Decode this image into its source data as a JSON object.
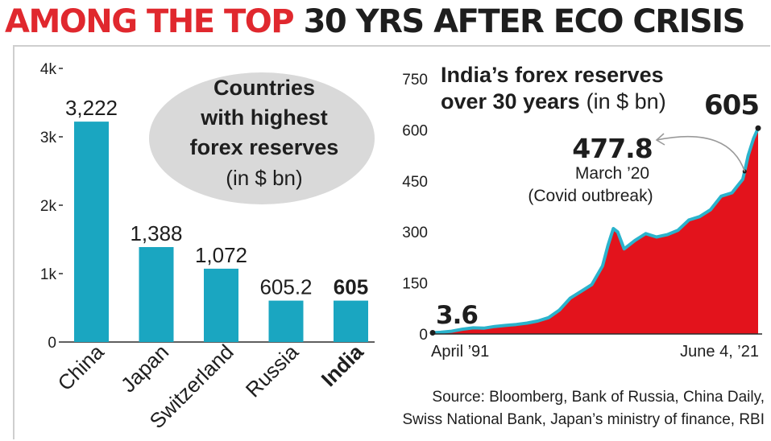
{
  "headline": {
    "part1": "AMONG THE TOP",
    "part2": "30 YRS AFTER ECO CRISIS"
  },
  "colors": {
    "headline_red": "#e0282e",
    "bar": "#1aa6c1",
    "area_fill": "#e3131c",
    "area_line": "#2ab3cc",
    "bubble": "#d9d9d9"
  },
  "source": {
    "line1": "Source: Bloomberg, Bank of Russia, China Daily,",
    "line2": "Swiss National Bank, Japan’s ministry of finance, RBI"
  },
  "chart_data": [
    {
      "type": "bar",
      "title_lines": [
        "Countries",
        "with highest",
        "forex reserves"
      ],
      "unit": "(in $ bn)",
      "categories": [
        "China",
        "Japan",
        "Switzerland",
        "Russia",
        "India"
      ],
      "values": [
        3222,
        1388,
        1072,
        605.2,
        605
      ],
      "value_labels": [
        "3,222",
        "1,388",
        "1,072",
        "605.2",
        "605"
      ],
      "highlight": "India",
      "yticks": [
        0,
        1000,
        2000,
        3000,
        4000
      ],
      "ytick_labels": [
        "0",
        "1k",
        "2k",
        "3k",
        "4k"
      ],
      "ylim": [
        0,
        4000
      ],
      "grid": false
    },
    {
      "type": "area",
      "title_lines": [
        "India’s forex reserves",
        "over 30 years"
      ],
      "unit": "(in $ bn)",
      "x_labels": [
        "April ’91",
        "June 4,  ’21"
      ],
      "xlim": [
        1991.25,
        2021.42
      ],
      "ylim": [
        0,
        750
      ],
      "yticks": [
        0,
        150,
        300,
        450,
        600,
        750
      ],
      "ytick_labels": [
        "0",
        "150",
        "300",
        "450",
        "600",
        "750"
      ],
      "start": {
        "label": "3.6",
        "value": 3.6
      },
      "end": {
        "label": "605",
        "value": 605
      },
      "annotation": {
        "value_label": "477.8",
        "value": 477.8,
        "date": "March ’20",
        "note": "(Covid outbreak)",
        "x": 2020.17
      },
      "x": [
        1991.25,
        1992,
        1993,
        1994,
        1995,
        1996,
        1997,
        1998,
        1999,
        2000,
        2001,
        2002,
        2003,
        2004,
        2005,
        2006,
        2007,
        2007.5,
        2008,
        2008.4,
        2009,
        2010,
        2011,
        2012,
        2013,
        2014,
        2015,
        2016,
        2017,
        2018,
        2019,
        2019.5,
        2020,
        2020.17,
        2020.5,
        2021,
        2021.42
      ],
      "y": [
        3.6,
        5,
        8,
        14,
        18,
        17,
        22,
        25,
        28,
        32,
        38,
        48,
        70,
        105,
        125,
        145,
        200,
        260,
        310,
        300,
        250,
        275,
        295,
        285,
        292,
        305,
        335,
        345,
        365,
        405,
        415,
        435,
        455,
        477.8,
        525,
        575,
        605
      ],
      "grid": false
    }
  ]
}
